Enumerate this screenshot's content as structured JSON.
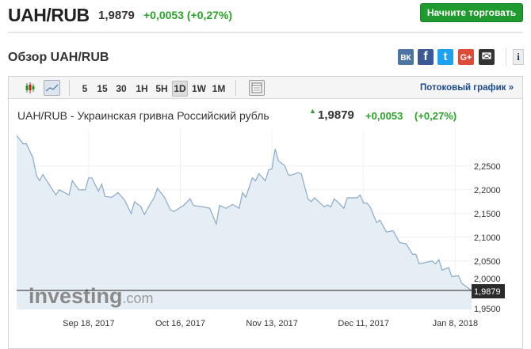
{
  "header": {
    "pair": "UAH/RUB",
    "price": "1,9879",
    "change": "+0,0053 (+0,27%)",
    "trade_button": "Начните торговать"
  },
  "overview": {
    "title": "Обзор UAH/RUB"
  },
  "share": [
    {
      "icon": "vk-icon",
      "label": "ВК",
      "color": "#4c75a3"
    },
    {
      "icon": "facebook-icon",
      "label": "f",
      "color": "#3b5998"
    },
    {
      "icon": "twitter-icon",
      "label": "t",
      "color": "#1da1f2"
    },
    {
      "icon": "google-plus-icon",
      "label": "G+",
      "color": "#dd4b39"
    },
    {
      "icon": "mail-icon",
      "label": "✉",
      "color": "#333333"
    }
  ],
  "info_label": "i",
  "toolbar": {
    "intervals": [
      "5",
      "15",
      "30",
      "1H",
      "5H",
      "1D",
      "1W",
      "1M"
    ],
    "selected": "1D",
    "stream_link": "Потоковый график »"
  },
  "chart_header": {
    "title": "UAH/RUB - Украинская гривна Российский рубль",
    "price": "1,9879",
    "change": "+0,0053",
    "percent": "(+0,27%)"
  },
  "watermark": "investing.com",
  "chart_data": {
    "type": "area",
    "x_ticks": [
      "Sep 18, 2017",
      "Oct 16, 2017",
      "Nov 13, 2017",
      "Dec 11, 2017",
      "Jan 8, 2018"
    ],
    "y_ticks": [
      "2,2500",
      "2,2000",
      "2,1500",
      "2,1000",
      "2,0500",
      "2,0000",
      "1,9500"
    ],
    "ylim": [
      1.948,
      2.328
    ],
    "xlim": [
      "2017-08-27",
      "2018-01-13"
    ],
    "current_label": "1,9879",
    "current_value": 1.9879,
    "line_color": "#8aa9c8",
    "fill_color": "#e6eef5",
    "grid": true,
    "x": [
      "2017-08-27",
      "2017-08-29",
      "2017-08-30",
      "2017-09-01",
      "2017-09-02",
      "2017-09-03",
      "2017-09-04",
      "2017-09-08",
      "2017-09-09",
      "2017-09-12",
      "2017-09-13",
      "2017-09-15",
      "2017-09-17",
      "2017-09-18",
      "2017-09-19",
      "2017-09-21",
      "2017-09-22",
      "2017-09-23",
      "2017-09-25",
      "2017-09-27",
      "2017-09-29",
      "2017-10-01",
      "2017-10-02",
      "2017-10-04",
      "2017-10-05",
      "2017-10-07",
      "2017-10-08",
      "2017-10-09",
      "2017-10-11",
      "2017-10-13",
      "2017-10-14",
      "2017-10-17",
      "2017-10-19",
      "2017-10-20",
      "2017-10-23",
      "2017-10-25",
      "2017-10-27",
      "2017-10-28",
      "2017-10-30",
      "2017-11-01",
      "2017-11-03",
      "2017-11-04",
      "2017-11-05",
      "2017-11-07",
      "2017-11-08",
      "2017-11-09",
      "2017-11-11",
      "2017-11-12",
      "2017-11-13",
      "2017-11-14",
      "2017-11-15",
      "2017-11-17",
      "2017-11-18",
      "2017-11-19",
      "2017-11-21",
      "2017-11-22",
      "2017-11-24",
      "2017-11-25",
      "2017-11-26",
      "2017-11-29",
      "2017-11-30",
      "2017-12-01",
      "2017-12-02",
      "2017-12-03",
      "2017-12-05",
      "2017-12-06",
      "2017-12-09",
      "2017-12-10",
      "2017-12-11",
      "2017-12-12",
      "2017-12-13",
      "2017-12-15",
      "2017-12-16",
      "2017-12-18",
      "2017-12-20",
      "2017-12-22",
      "2017-12-24",
      "2017-12-26",
      "2017-12-27",
      "2017-12-28",
      "2018-01-01",
      "2018-01-02",
      "2018-01-03",
      "2018-01-04",
      "2018-01-06",
      "2018-01-07",
      "2018-01-09",
      "2018-01-10",
      "2018-01-13"
    ],
    "y": [
      2.314,
      2.297,
      2.297,
      2.267,
      2.231,
      2.219,
      2.232,
      2.189,
      2.2,
      2.189,
      2.219,
      2.2,
      2.2,
      2.225,
      2.225,
      2.197,
      2.212,
      2.186,
      2.184,
      2.194,
      2.178,
      2.15,
      2.175,
      2.164,
      2.148,
      2.172,
      2.183,
      2.203,
      2.186,
      2.158,
      2.154,
      2.167,
      2.181,
      2.167,
      2.164,
      2.161,
      2.128,
      2.167,
      2.161,
      2.169,
      2.161,
      2.194,
      2.184,
      2.225,
      2.219,
      2.234,
      2.219,
      2.242,
      2.244,
      2.286,
      2.261,
      2.25,
      2.231,
      2.231,
      2.236,
      2.233,
      2.181,
      2.175,
      2.183,
      2.164,
      2.168,
      2.164,
      2.181,
      2.175,
      2.161,
      2.183,
      2.183,
      2.189,
      2.172,
      2.172,
      2.164,
      2.131,
      2.136,
      2.111,
      2.114,
      2.089,
      2.086,
      2.064,
      2.064,
      2.044,
      2.05,
      2.044,
      2.053,
      2.031,
      2.036,
      2.017,
      2.019,
      2.003,
      1.9879
    ]
  }
}
